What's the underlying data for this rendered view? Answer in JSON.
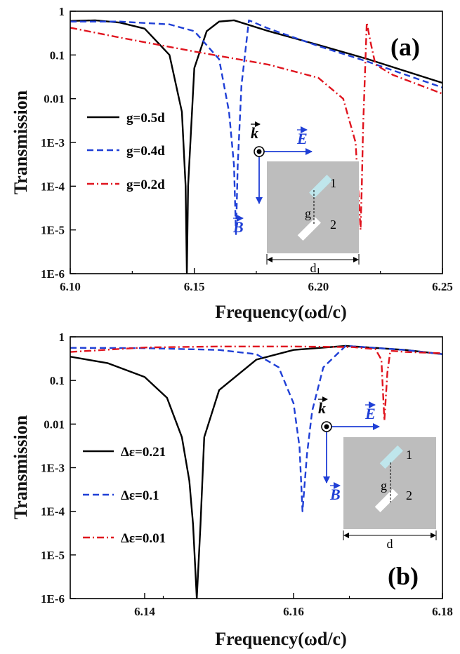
{
  "chart_data": [
    {
      "type": "line",
      "panel_label": "(a)",
      "xlabel": "Frequency(ωd/c)",
      "ylabel": "Transmission",
      "xlim": [
        6.1,
        6.25
      ],
      "ylim": [
        1e-06,
        1
      ],
      "yscale": "log",
      "xticks": [
        "6.10",
        "6.15",
        "6.20",
        "6.25"
      ],
      "yticks": [
        "1",
        "0.1",
        "0.01",
        "1E-3",
        "1E-4",
        "1E-5",
        "1E-6"
      ],
      "legend_position": "left",
      "series": [
        {
          "name": "g=0.5d",
          "color": "#000000",
          "style": "solid",
          "x": [
            6.1,
            6.11,
            6.12,
            6.13,
            6.14,
            6.145,
            6.1465,
            6.147,
            6.1475,
            6.15,
            6.155,
            6.16,
            6.166,
            6.18,
            6.2,
            6.22,
            6.25
          ],
          "y": [
            0.6,
            0.62,
            0.55,
            0.4,
            0.1,
            0.005,
            0.0001,
            1e-06,
            0.0001,
            0.05,
            0.35,
            0.58,
            0.62,
            0.35,
            0.17,
            0.08,
            0.023
          ]
        },
        {
          "name": "g=0.4d",
          "color": "#1f3fd6",
          "style": "dashed",
          "x": [
            6.1,
            6.12,
            6.14,
            6.15,
            6.16,
            6.164,
            6.166,
            6.1668,
            6.1675,
            6.169,
            6.172,
            6.18,
            6.2,
            6.22,
            6.25
          ],
          "y": [
            0.58,
            0.58,
            0.5,
            0.35,
            0.08,
            0.005,
            0.0003,
            8e-06,
            0.0003,
            0.02,
            0.62,
            0.4,
            0.16,
            0.07,
            0.018
          ]
        },
        {
          "name": "g=0.2d",
          "color": "#e0141e",
          "style": "dashdot",
          "x": [
            6.1,
            6.12,
            6.15,
            6.18,
            6.2,
            6.21,
            6.215,
            6.217,
            6.2175,
            6.218,
            6.2195,
            6.221,
            6.223,
            6.23,
            6.25
          ],
          "y": [
            0.42,
            0.25,
            0.12,
            0.06,
            0.03,
            0.01,
            0.001,
            1e-05,
            0.0001,
            0.002,
            0.55,
            0.2,
            0.06,
            0.035,
            0.013
          ]
        }
      ]
    },
    {
      "type": "line",
      "panel_label": "(b)",
      "xlabel": "Frequency(ωd/c)",
      "ylabel": "Transmission",
      "xlim": [
        6.13,
        6.18
      ],
      "ylim": [
        1e-06,
        1
      ],
      "yscale": "log",
      "xticks": [
        "6.14",
        "6.16",
        "6.18"
      ],
      "yticks": [
        "1",
        "0.1",
        "0.01",
        "1E-3",
        "1E-4",
        "1E-5",
        "1E-6"
      ],
      "legend_position": "left",
      "series": [
        {
          "name": "Δε=0.21",
          "color": "#000000",
          "style": "solid",
          "x": [
            6.13,
            6.135,
            6.14,
            6.143,
            6.145,
            6.146,
            6.1465,
            6.147,
            6.1475,
            6.148,
            6.15,
            6.155,
            6.16,
            6.167,
            6.175,
            6.18
          ],
          "y": [
            0.35,
            0.25,
            0.12,
            0.04,
            0.005,
            0.0005,
            5e-05,
            1e-06,
            5e-05,
            0.005,
            0.06,
            0.3,
            0.5,
            0.62,
            0.5,
            0.4
          ]
        },
        {
          "name": "Δε=0.1",
          "color": "#1f3fd6",
          "style": "dashed",
          "x": [
            6.13,
            6.14,
            6.15,
            6.155,
            6.158,
            6.16,
            6.1608,
            6.1612,
            6.1618,
            6.1625,
            6.164,
            6.167,
            6.175,
            6.18
          ],
          "y": [
            0.56,
            0.55,
            0.5,
            0.4,
            0.2,
            0.03,
            0.003,
            0.0001,
            0.002,
            0.02,
            0.2,
            0.62,
            0.5,
            0.4
          ]
        },
        {
          "name": "Δε=0.01",
          "color": "#e0141e",
          "style": "dashdot",
          "x": [
            6.13,
            6.14,
            6.15,
            6.16,
            6.168,
            6.171,
            6.1718,
            6.1722,
            6.1726,
            6.173,
            6.175,
            6.18
          ],
          "y": [
            0.45,
            0.57,
            0.6,
            0.6,
            0.58,
            0.52,
            0.3,
            0.012,
            0.15,
            0.48,
            0.45,
            0.42
          ]
        }
      ]
    }
  ],
  "inset": {
    "k_label": "k",
    "e_label": "E",
    "b_label": "B",
    "rod1_label": "1",
    "rod2_label": "2",
    "gap_label": "g",
    "period_label": "d",
    "background_color": "#bdbdbd",
    "rod1_color": "#bfe6ec",
    "rod2_color": "#ffffff",
    "arrow_color": "#1f3fd6"
  }
}
